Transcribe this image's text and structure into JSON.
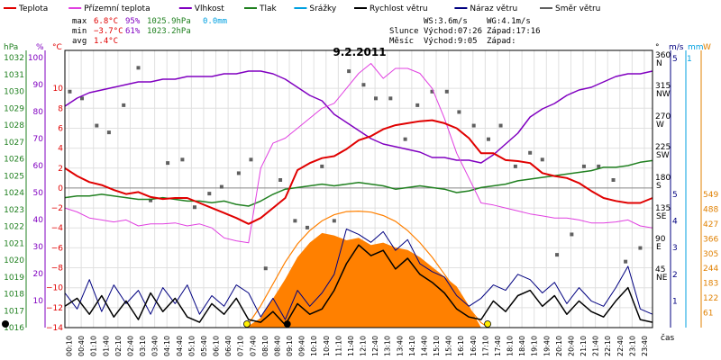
{
  "legend": [
    {
      "label": "Teplota",
      "color": "#e00000"
    },
    {
      "label": "Přízemní teplota",
      "color": "#e040e0"
    },
    {
      "label": "Vlhkost",
      "color": "#8000c0"
    },
    {
      "label": "Tlak",
      "color": "#208020"
    },
    {
      "label": "Srážky",
      "color": "#00a0e0"
    },
    {
      "label": "Rychlost větru",
      "color": "#000000"
    },
    {
      "label": "Náraz větru",
      "color": "#000080"
    },
    {
      "label": "Směr větru",
      "color": "#606060"
    }
  ],
  "stats": {
    "max": {
      "label": "max",
      "temp": "6.8°C",
      "hum": "95%",
      "press": "1025.9hPa",
      "rain": "0.0mm"
    },
    "min": {
      "label": "min",
      "temp": "−3.7°C",
      "hum": "61%",
      "press": "1023.2hPa"
    },
    "avg": {
      "label": "avg",
      "temp": "1.4°C"
    }
  },
  "wind_info": {
    "ws": "WS:3.6m/s",
    "wg": "WG:4.1m/s",
    "sun_label": "Slunce",
    "sunrise": "Východ:07:26",
    "sunset": "Západ:17:16",
    "moon_label": "Měsíc",
    "moonrise": "Východ:9:05",
    "moonset": "Západ:"
  },
  "axis_units": {
    "pressure": "hPa",
    "humidity": "%",
    "temp": "°C",
    "direction": "°",
    "wind": "m/s",
    "rain": "mm",
    "solar": "W",
    "time": "čas"
  },
  "colors": {
    "temp": "#e00000",
    "ground_temp": "#e040e0",
    "humidity": "#8000c0",
    "pressure": "#208020",
    "rain": "#00a0e0",
    "wind": "#000000",
    "gust": "#000080",
    "direction": "#606060",
    "solar": "#ff8000",
    "solar_theory": "#ff8000",
    "solar_axis": "#e08000"
  },
  "chart_data": {
    "type": "line",
    "title": "9.2.2011",
    "xlabel": "čas",
    "x_ticks": [
      "00:10",
      "00:40",
      "01:10",
      "01:40",
      "02:10",
      "02:40",
      "03:10",
      "03:40",
      "04:10",
      "04:40",
      "05:10",
      "05:40",
      "06:10",
      "06:40",
      "07:10",
      "07:40",
      "08:10",
      "08:40",
      "09:10",
      "09:40",
      "10:10",
      "10:40",
      "11:10",
      "11:40",
      "12:10",
      "12:40",
      "13:10",
      "13:40",
      "14:10",
      "14:40",
      "15:10",
      "15:40",
      "16:10",
      "16:40",
      "17:10",
      "17:40",
      "18:10",
      "18:40",
      "19:10",
      "19:40",
      "20:10",
      "20:40",
      "21:10",
      "21:40",
      "22:10",
      "22:40",
      "23:10",
      "23:40"
    ],
    "x_range_hours": [
      0,
      24
    ],
    "axes": {
      "pressure": {
        "unit": "hPa",
        "range": [
          1016,
          1032
        ],
        "ticks": [
          1016,
          1017,
          1018,
          1019,
          1020,
          1021,
          1022,
          1023,
          1024,
          1025,
          1026,
          1027,
          1028,
          1029,
          1030,
          1031,
          1032
        ]
      },
      "humidity": {
        "unit": "%",
        "range": [
          0,
          100
        ],
        "ticks": [
          10,
          20,
          30,
          40,
          50,
          60,
          70,
          80,
          90,
          100
        ]
      },
      "temperature": {
        "unit": "°C",
        "range": [
          -14,
          12
        ],
        "ticks": [
          -14,
          -12,
          -10,
          -8,
          -6,
          -4,
          -2,
          0,
          2,
          4,
          6,
          8,
          10
        ]
      },
      "direction": {
        "unit": "°",
        "ticks": [
          {
            "v": 360,
            "l": "N"
          },
          {
            "v": 315,
            "l": "NW"
          },
          {
            "v": 270,
            "l": "W"
          },
          {
            "v": 225,
            "l": "SW"
          },
          {
            "v": 180,
            "l": "S"
          },
          {
            "v": 135,
            "l": "SE"
          },
          {
            "v": 90,
            "l": "E"
          },
          {
            "v": 45,
            "l": "NE"
          },
          {
            "v": 0,
            "l": ""
          }
        ]
      },
      "wind": {
        "unit": "m/s",
        "range": [
          0,
          5
        ],
        "ticks": [
          1,
          2,
          3,
          4,
          5
        ]
      },
      "rain": {
        "unit": "mm",
        "range": [
          0,
          1
        ],
        "ticks": [
          1
        ]
      },
      "solar": {
        "unit": "W",
        "range": [
          0,
          549
        ],
        "ticks": [
          61,
          122,
          183,
          244,
          305,
          366,
          427,
          488,
          549
        ]
      }
    },
    "series": [
      {
        "name": "Teplota",
        "key": "temp",
        "axis": "temperature",
        "x": [
          0,
          0.5,
          1,
          1.5,
          2,
          2.5,
          3,
          3.5,
          4,
          4.5,
          5,
          5.5,
          6,
          6.5,
          7,
          7.5,
          8,
          8.5,
          9,
          9.5,
          10,
          10.5,
          11,
          11.5,
          12,
          12.5,
          13,
          13.5,
          14,
          14.5,
          15,
          15.5,
          16,
          16.5,
          17,
          17.5,
          18,
          18.5,
          19,
          19.5,
          20,
          20.5,
          21,
          21.5,
          22,
          22.5,
          23,
          23.5,
          24
        ],
        "y": [
          2.0,
          1.2,
          0.6,
          0.3,
          -0.2,
          -0.6,
          -0.4,
          -0.9,
          -1.1,
          -1.0,
          -1.0,
          -1.5,
          -2.0,
          -2.5,
          -3.0,
          -3.6,
          -3.0,
          -2.0,
          -1.0,
          1.8,
          2.5,
          3.0,
          3.2,
          3.9,
          4.8,
          5.2,
          5.9,
          6.3,
          6.5,
          6.7,
          6.8,
          6.5,
          6.0,
          5.0,
          3.5,
          3.5,
          2.8,
          2.7,
          2.5,
          1.5,
          1.2,
          1.0,
          0.5,
          -0.3,
          -1.0,
          -1.3,
          -1.5,
          -1.5,
          -1.0
        ]
      },
      {
        "name": "Přízemní teplota",
        "key": "ground_temp",
        "axis": "temperature",
        "x": [
          0,
          0.5,
          1,
          1.5,
          2,
          2.5,
          3,
          3.5,
          4,
          4.5,
          5,
          5.5,
          6,
          6.5,
          7,
          7.5,
          8,
          8.5,
          9,
          9.5,
          10,
          10.5,
          11,
          11.5,
          12,
          12.5,
          13,
          13.5,
          14,
          14.5,
          15,
          15.5,
          16,
          16.5,
          17,
          17.5,
          18,
          18.5,
          19,
          19.5,
          20,
          20.5,
          21,
          21.5,
          22,
          22.5,
          23,
          23.5,
          24
        ],
        "y": [
          -2.0,
          -2.4,
          -3.0,
          -3.2,
          -3.4,
          -3.2,
          -3.8,
          -3.6,
          -3.6,
          -3.5,
          -3.8,
          -3.6,
          -4.0,
          -5.0,
          -5.3,
          -5.5,
          2.0,
          4.5,
          5.0,
          6.0,
          7.0,
          8.0,
          8.5,
          10.0,
          11.5,
          12.5,
          11.0,
          12.0,
          12.0,
          11.5,
          10.0,
          7.0,
          3.5,
          1.0,
          -1.5,
          -1.7,
          -2.0,
          -2.3,
          -2.6,
          -2.8,
          -3.0,
          -3.0,
          -3.2,
          -3.5,
          -3.5,
          -3.4,
          -3.2,
          -3.8,
          -4.0
        ]
      },
      {
        "name": "Vlhkost",
        "key": "humidity",
        "axis": "humidity",
        "x": [
          0,
          0.5,
          1,
          1.5,
          2,
          2.5,
          3,
          3.5,
          4,
          4.5,
          5,
          5.5,
          6,
          6.5,
          7,
          7.5,
          8,
          8.5,
          9,
          9.5,
          10,
          10.5,
          11,
          11.5,
          12,
          12.5,
          13,
          13.5,
          14,
          14.5,
          15,
          15.5,
          16,
          16.5,
          17,
          17.5,
          18,
          18.5,
          19,
          19.5,
          20,
          20.5,
          21,
          21.5,
          22,
          22.5,
          23,
          23.5,
          24
        ],
        "y": [
          82,
          85,
          87,
          88,
          89,
          90,
          91,
          91,
          92,
          92,
          93,
          93,
          93,
          94,
          94,
          95,
          95,
          94,
          92,
          89,
          86,
          84,
          79,
          76,
          73,
          70,
          68,
          67,
          66,
          65,
          63,
          63,
          62,
          62,
          61,
          64,
          68,
          72,
          78,
          81,
          83,
          86,
          88,
          89,
          91,
          93,
          94,
          94,
          95
        ]
      },
      {
        "name": "Tlak",
        "key": "pressure",
        "axis": "pressure",
        "x": [
          0,
          0.5,
          1,
          1.5,
          2,
          2.5,
          3,
          3.5,
          4,
          4.5,
          5,
          5.5,
          6,
          6.5,
          7,
          7.5,
          8,
          8.5,
          9,
          9.5,
          10,
          10.5,
          11,
          11.5,
          12,
          12.5,
          13,
          13.5,
          14,
          14.5,
          15,
          15.5,
          16,
          16.5,
          17,
          17.5,
          18,
          18.5,
          19,
          19.5,
          20,
          20.5,
          21,
          21.5,
          22,
          22.5,
          23,
          23.5,
          24
        ],
        "y": [
          1023.7,
          1023.8,
          1023.8,
          1023.9,
          1023.8,
          1023.7,
          1023.6,
          1023.6,
          1023.7,
          1023.6,
          1023.5,
          1023.5,
          1023.4,
          1023.5,
          1023.3,
          1023.2,
          1023.5,
          1023.9,
          1024.2,
          1024.3,
          1024.4,
          1024.5,
          1024.4,
          1024.5,
          1024.6,
          1024.5,
          1024.4,
          1024.2,
          1024.3,
          1024.4,
          1024.3,
          1024.2,
          1024.0,
          1024.1,
          1024.3,
          1024.4,
          1024.5,
          1024.7,
          1024.8,
          1024.9,
          1025.0,
          1025.1,
          1025.2,
          1025.3,
          1025.5,
          1025.5,
          1025.6,
          1025.8,
          1025.9
        ]
      },
      {
        "name": "Rychlost větru",
        "key": "wind",
        "axis": "wind",
        "x": [
          0,
          0.5,
          1,
          1.5,
          2,
          2.5,
          3,
          3.5,
          4,
          4.5,
          5,
          5.5,
          6,
          6.5,
          7,
          7.5,
          8,
          8.5,
          9,
          9.5,
          10,
          10.5,
          11,
          11.5,
          12,
          12.5,
          13,
          13.5,
          14,
          14.5,
          15,
          15.5,
          16,
          16.5,
          17,
          17.5,
          18,
          18.5,
          19,
          19.5,
          20,
          20.5,
          21,
          21.5,
          22,
          22.5,
          23,
          23.5,
          24
        ],
        "y": [
          0.8,
          1.1,
          0.5,
          1.2,
          0.4,
          1.0,
          0.3,
          1.3,
          0.6,
          1.1,
          0.4,
          0.2,
          0.9,
          0.5,
          1.1,
          0.3,
          0.2,
          0.6,
          0.1,
          0.9,
          0.5,
          0.7,
          1.4,
          2.4,
          3.1,
          2.7,
          2.9,
          2.2,
          2.6,
          2.0,
          1.7,
          1.3,
          0.7,
          0.4,
          0.3,
          1.0,
          0.6,
          1.2,
          1.4,
          0.8,
          1.2,
          0.5,
          1.0,
          0.6,
          0.4,
          1.0,
          1.5,
          0.3,
          0.2
        ]
      },
      {
        "name": "Náraz větru",
        "key": "gust",
        "axis": "wind",
        "x": [
          0,
          0.5,
          1,
          1.5,
          2,
          2.5,
          3,
          3.5,
          4,
          4.5,
          5,
          5.5,
          6,
          6.5,
          7,
          7.5,
          8,
          8.5,
          9,
          9.5,
          10,
          10.5,
          11,
          11.5,
          12,
          12.5,
          13,
          13.5,
          14,
          14.5,
          15,
          15.5,
          16,
          16.5,
          17,
          17.5,
          18,
          18.5,
          19,
          19.5,
          20,
          20.5,
          21,
          21.5,
          22,
          22.5,
          23,
          23.5,
          24
        ],
        "y": [
          1.3,
          0.7,
          1.8,
          0.6,
          1.6,
          0.9,
          1.4,
          0.5,
          1.5,
          0.9,
          1.6,
          0.5,
          1.2,
          0.8,
          1.6,
          1.3,
          0.4,
          1.1,
          0.3,
          1.4,
          0.8,
          1.3,
          2.0,
          3.7,
          3.5,
          3.2,
          3.6,
          2.9,
          3.3,
          2.4,
          2.1,
          1.9,
          1.2,
          0.8,
          1.1,
          1.6,
          1.4,
          2.0,
          1.8,
          1.3,
          1.7,
          0.9,
          1.5,
          1.0,
          0.8,
          1.5,
          2.3,
          0.7,
          0.5
        ]
      },
      {
        "name": "Směr větru",
        "key": "direction",
        "axis": "direction",
        "x": [
          0.2,
          0.7,
          1.3,
          1.8,
          2.4,
          3.0,
          3.5,
          4.2,
          4.8,
          5.3,
          5.9,
          6.4,
          7.1,
          7.6,
          8.2,
          8.8,
          9.4,
          9.9,
          10.5,
          11.0,
          11.6,
          12.2,
          12.7,
          13.3,
          13.9,
          14.4,
          15.0,
          15.6,
          16.1,
          16.7,
          17.3,
          17.8,
          18.4,
          19.0,
          19.5,
          20.1,
          20.7,
          21.2,
          21.8,
          22.4,
          22.9,
          23.5
        ],
        "y": [
          310,
          300,
          260,
          250,
          290,
          345,
          150,
          205,
          210,
          140,
          160,
          170,
          190,
          210,
          50,
          180,
          120,
          110,
          200,
          120,
          340,
          320,
          300,
          300,
          240,
          290,
          310,
          310,
          280,
          260,
          240,
          260,
          200,
          220,
          210,
          70,
          100,
          200,
          200,
          180,
          60,
          80
        ]
      },
      {
        "name": "Srážky",
        "key": "rain",
        "axis": "rain",
        "x": [
          0,
          24
        ],
        "y": [
          0,
          0
        ]
      },
      {
        "name": "Sluneční záření",
        "key": "solar",
        "axis": "solar",
        "x": [
          7.4,
          8.0,
          8.5,
          9.0,
          9.5,
          10.0,
          10.5,
          11.0,
          11.5,
          12.0,
          12.5,
          13.0,
          13.5,
          14.0,
          14.5,
          15.0,
          15.5,
          16.0,
          16.5,
          17.0
        ],
        "y": [
          0,
          40,
          120,
          200,
          290,
          350,
          390,
          380,
          360,
          370,
          340,
          350,
          330,
          320,
          290,
          250,
          210,
          170,
          90,
          0
        ]
      },
      {
        "name": "Teoretické záření",
        "key": "solar_theory",
        "axis": "solar",
        "x": [
          7.4,
          8.0,
          8.5,
          9.0,
          9.5,
          10.0,
          10.5,
          11.0,
          11.5,
          12.0,
          12.5,
          13.0,
          13.5,
          14.0,
          14.5,
          15.0,
          15.5,
          16.0,
          16.5,
          17.0,
          17.3
        ],
        "y": [
          0,
          90,
          180,
          270,
          345,
          400,
          440,
          465,
          478,
          480,
          476,
          462,
          438,
          400,
          350,
          290,
          220,
          150,
          80,
          20,
          0
        ]
      }
    ]
  }
}
